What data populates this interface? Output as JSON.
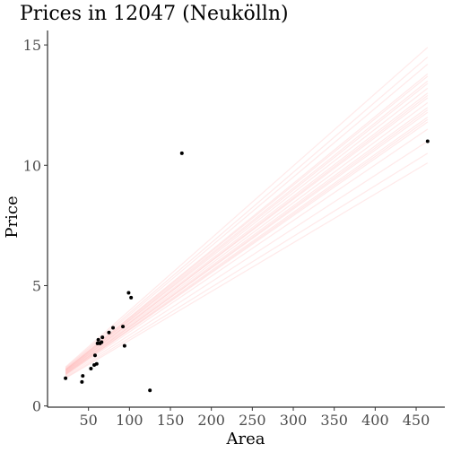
{
  "chart_data": {
    "type": "scatter",
    "title": "Prices in 12047 (Neukölln)",
    "xlabel": "Area",
    "ylabel": "Price",
    "xlim": [
      0,
      485
    ],
    "ylim": [
      -0.05,
      15.6
    ],
    "x_ticks": [
      50,
      100,
      150,
      200,
      250,
      300,
      350,
      400,
      450
    ],
    "y_ticks": [
      0,
      5,
      10,
      15
    ],
    "grid": false,
    "points": [
      {
        "x": 22,
        "y": 1.15
      },
      {
        "x": 42,
        "y": 1.0
      },
      {
        "x": 43,
        "y": 1.25
      },
      {
        "x": 53,
        "y": 1.55
      },
      {
        "x": 57,
        "y": 1.7
      },
      {
        "x": 58,
        "y": 2.1
      },
      {
        "x": 60,
        "y": 1.75
      },
      {
        "x": 61,
        "y": 2.6
      },
      {
        "x": 62,
        "y": 2.75
      },
      {
        "x": 64,
        "y": 2.6
      },
      {
        "x": 66,
        "y": 2.65
      },
      {
        "x": 67,
        "y": 2.85
      },
      {
        "x": 75,
        "y": 3.05
      },
      {
        "x": 80,
        "y": 3.25
      },
      {
        "x": 92,
        "y": 3.3
      },
      {
        "x": 94,
        "y": 2.5
      },
      {
        "x": 99,
        "y": 4.7
      },
      {
        "x": 102,
        "y": 4.5
      },
      {
        "x": 125,
        "y": 0.65
      },
      {
        "x": 164,
        "y": 10.5
      },
      {
        "x": 464,
        "y": 11.0
      }
    ],
    "fit_lines": {
      "description_color": "#ff9a9a",
      "x_start": 22,
      "x_end": 464,
      "lines": [
        {
          "y_start": 1.62,
          "y_end": 14.9
        },
        {
          "y_start": 1.58,
          "y_end": 14.5
        },
        {
          "y_start": 1.55,
          "y_end": 14.2
        },
        {
          "y_start": 1.52,
          "y_end": 13.8
        },
        {
          "y_start": 1.5,
          "y_end": 13.5
        },
        {
          "y_start": 1.48,
          "y_end": 13.2
        },
        {
          "y_start": 1.45,
          "y_end": 13.0
        },
        {
          "y_start": 1.43,
          "y_end": 12.8
        },
        {
          "y_start": 1.4,
          "y_end": 12.6
        },
        {
          "y_start": 1.38,
          "y_end": 12.4
        },
        {
          "y_start": 1.36,
          "y_end": 12.2
        },
        {
          "y_start": 1.33,
          "y_end": 12.0
        },
        {
          "y_start": 1.3,
          "y_end": 11.8
        },
        {
          "y_start": 1.27,
          "y_end": 11.5
        },
        {
          "y_start": 1.22,
          "y_end": 11.0
        },
        {
          "y_start": 1.18,
          "y_end": 10.5
        },
        {
          "y_start": 1.15,
          "y_end": 10.1
        },
        {
          "y_start": 1.5,
          "y_end": 13.7
        },
        {
          "y_start": 1.41,
          "y_end": 12.9
        },
        {
          "y_start": 1.35,
          "y_end": 12.3
        },
        {
          "y_start": 1.46,
          "y_end": 13.4
        },
        {
          "y_start": 1.31,
          "y_end": 11.9
        }
      ]
    }
  }
}
